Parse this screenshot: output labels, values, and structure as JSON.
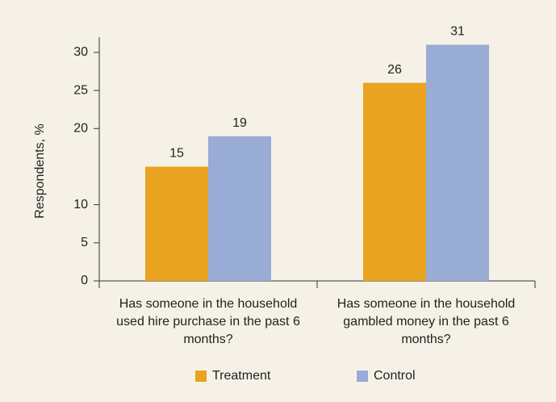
{
  "chart_data": {
    "type": "bar",
    "y_label": "Respondents, %",
    "categories": [
      "Has someone in the household used hire purchase in the past 6 months?",
      "Has someone in the household gambled money in the past 6 months?"
    ],
    "series": [
      {
        "name": "Treatment",
        "color": "#e9a321",
        "values": [
          15,
          26
        ]
      },
      {
        "name": "Control",
        "color": "#98acd5",
        "values": [
          19,
          31
        ]
      }
    ],
    "ylim": [
      0,
      32
    ],
    "yticks": [
      0,
      5,
      10,
      20,
      25,
      30
    ],
    "grid": false,
    "legend": "bottom"
  }
}
